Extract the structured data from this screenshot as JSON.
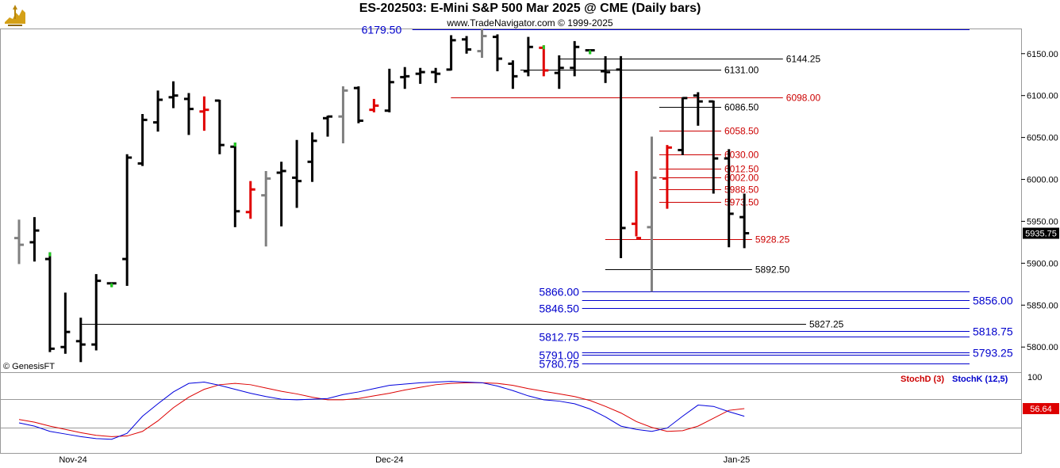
{
  "header": {
    "title": "ES-202503:  E-Mini S&P 500 Mar 2025 @ CME  (Daily bars)",
    "subtitle": "www.TradeNavigator.com © 1999-2025",
    "credit": "© GenesisFT"
  },
  "colors": {
    "up_bar": "#000000",
    "red_bar": "#e00000",
    "gray_bar": "#808080",
    "green_tick": "#22cc22",
    "blue_line": "#0000cc",
    "red_line": "#cc0000",
    "black_line": "#000000",
    "stoch_k": "#0000dd",
    "stoch_d": "#dd0000"
  },
  "chart_data": [
    {
      "type": "ohlc",
      "title": "ES-202503:  E-Mini S&P 500 Mar 2025 @ CME  (Daily bars)",
      "ylim": [
        5770,
        6180
      ],
      "y_ticks": [
        5800,
        5850,
        5900,
        5950,
        6000,
        6050,
        6100,
        6150
      ],
      "y_tick_labels": [
        "5800.00",
        "5850.00",
        "5900.00",
        "5950.00",
        "6000.00",
        "6050.00",
        "6100.00",
        "6150.00"
      ],
      "x_labels": [
        {
          "label": "Nov-24",
          "index": 3.5
        },
        {
          "label": "Dec-24",
          "index": 24
        },
        {
          "label": "Jan-25",
          "index": 46.5
        }
      ],
      "last_price_label": "5935.75",
      "bars": [
        {
          "o": 5930,
          "h": 5952,
          "l": 5899,
          "c": 5922,
          "color": "gray"
        },
        {
          "o": 5925,
          "h": 5955,
          "l": 5902,
          "c": 5939,
          "color": "black"
        },
        {
          "o": 5905,
          "h": 5913,
          "l": 5794,
          "c": 5798,
          "color": "black",
          "mark": "green"
        },
        {
          "o": 5800,
          "h": 5865,
          "l": 5792,
          "c": 5818,
          "color": "black"
        },
        {
          "o": 5807,
          "h": 5835,
          "l": 5782,
          "c": 5803,
          "color": "black"
        },
        {
          "o": 5803,
          "h": 5887,
          "l": 5796,
          "c": 5879,
          "color": "black"
        },
        {
          "o": 5876,
          "h": 5876,
          "l": 5872,
          "c": 5876,
          "color": "black",
          "mark": "green"
        },
        {
          "o": 5905,
          "h": 6030,
          "l": 5873,
          "c": 6026,
          "color": "black"
        },
        {
          "o": 6019,
          "h": 6078,
          "l": 6016,
          "c": 6071,
          "color": "black"
        },
        {
          "o": 6068,
          "h": 6106,
          "l": 6057,
          "c": 6095,
          "color": "black"
        },
        {
          "o": 6098,
          "h": 6117,
          "l": 6085,
          "c": 6100,
          "color": "black"
        },
        {
          "o": 6096,
          "h": 6103,
          "l": 6053,
          "c": 6084,
          "color": "black"
        },
        {
          "o": 6081,
          "h": 6099,
          "l": 6058,
          "c": 6083,
          "color": "red"
        },
        {
          "o": 6094,
          "h": 6095,
          "l": 6030,
          "c": 6041,
          "color": "black"
        },
        {
          "o": 6039,
          "h": 6044,
          "l": 5943,
          "c": 5962,
          "color": "black",
          "mark": "green"
        },
        {
          "o": 5961,
          "h": 5998,
          "l": 5953,
          "c": 5988,
          "color": "red"
        },
        {
          "o": 5981,
          "h": 6010,
          "l": 5920,
          "c": 6001,
          "color": "gray"
        },
        {
          "o": 6008,
          "h": 6021,
          "l": 5944,
          "c": 6010,
          "color": "black"
        },
        {
          "o": 6002,
          "h": 6047,
          "l": 5966,
          "c": 5998,
          "color": "black"
        },
        {
          "o": 6021,
          "h": 6056,
          "l": 5997,
          "c": 6046,
          "color": "black"
        },
        {
          "o": 6073,
          "h": 6076,
          "l": 6051,
          "c": 6075,
          "color": "black"
        },
        {
          "o": 6075,
          "h": 6111,
          "l": 6043,
          "c": 6106,
          "color": "gray"
        },
        {
          "o": 6109,
          "h": 6111,
          "l": 6067,
          "c": 6070,
          "color": "black"
        },
        {
          "o": 6083,
          "h": 6096,
          "l": 6080,
          "c": 6088,
          "color": "red"
        },
        {
          "o": 6082,
          "h": 6132,
          "l": 6080,
          "c": 6116,
          "color": "black"
        },
        {
          "o": 6122,
          "h": 6134,
          "l": 6108,
          "c": 6123,
          "color": "black"
        },
        {
          "o": 6126,
          "h": 6133,
          "l": 6114,
          "c": 6128,
          "color": "black"
        },
        {
          "o": 6128,
          "h": 6133,
          "l": 6115,
          "c": 6126,
          "color": "black"
        },
        {
          "o": 6131,
          "h": 6172,
          "l": 6130,
          "c": 6166,
          "color": "black"
        },
        {
          "o": 6167,
          "h": 6171,
          "l": 6150,
          "c": 6155,
          "color": "black"
        },
        {
          "o": 6153,
          "h": 6179.5,
          "l": 6145,
          "c": 6171,
          "color": "gray"
        },
        {
          "o": 6170,
          "h": 6173,
          "l": 6129,
          "c": 6144,
          "color": "black"
        },
        {
          "o": 6138,
          "h": 6142,
          "l": 6108,
          "c": 6123,
          "color": "black"
        },
        {
          "o": 6129,
          "h": 6170,
          "l": 6123,
          "c": 6158,
          "color": "black"
        },
        {
          "o": 6157,
          "h": 6160,
          "l": 6123,
          "c": 6130,
          "color": "red",
          "mark": "green"
        },
        {
          "o": 6127,
          "h": 6148,
          "l": 6108,
          "c": 6133,
          "color": "black"
        },
        {
          "o": 6133,
          "h": 6165,
          "l": 6123,
          "c": 6158,
          "color": "black"
        },
        {
          "o": 6154,
          "h": 6154,
          "l": 6150,
          "c": 6154,
          "color": "black",
          "mark": "green"
        },
        {
          "o": 6129,
          "h": 6147,
          "l": 6115,
          "c": 6128,
          "color": "black"
        },
        {
          "o": 6131,
          "h": 6147,
          "l": 5906,
          "c": 5942,
          "color": "black"
        },
        {
          "o": 5947,
          "h": 6010,
          "l": 5932,
          "c": 5930,
          "color": "red"
        },
        {
          "o": 5943,
          "h": 6051,
          "l": 5866,
          "c": 6002,
          "color": "gray"
        },
        {
          "o": 6001,
          "h": 6041,
          "l": 5965,
          "c": 6038,
          "color": "red"
        },
        {
          "o": 6035,
          "h": 6098,
          "l": 6029,
          "c": 6097,
          "color": "black"
        },
        {
          "o": 6100,
          "h": 6104,
          "l": 6064,
          "c": 6093,
          "color": "black"
        },
        {
          "o": 6093,
          "h": 6094,
          "l": 5983,
          "c": 6025,
          "color": "black"
        },
        {
          "o": 6025,
          "h": 6036,
          "l": 5919,
          "c": 5959,
          "color": "black"
        },
        {
          "o": 5955,
          "h": 5983,
          "l": 5918,
          "c": 5935.75,
          "color": "black"
        }
      ],
      "levels": [
        {
          "price": 6179.5,
          "label": "6179.50",
          "color": "blue",
          "from": 26,
          "to": "end",
          "label_side": "left",
          "label_index": 25
        },
        {
          "price": 6144.25,
          "label": "6144.25",
          "color": "black",
          "from": 35.5,
          "to": 49.5,
          "label_side": "right"
        },
        {
          "price": 6131.0,
          "label": "6131.00",
          "color": "black",
          "from": 33,
          "to": 45.5,
          "label_side": "right"
        },
        {
          "price": 6098.0,
          "label": "6098.00",
          "color": "red",
          "from": 28.5,
          "to": 49.5,
          "label_side": "right"
        },
        {
          "price": 6086.5,
          "label": "6086.50",
          "color": "black",
          "from": 42,
          "to": 45.5,
          "label_side": "right"
        },
        {
          "price": 6058.5,
          "label": "6058.50",
          "color": "red",
          "from": 42,
          "to": 45.5,
          "label_side": "right"
        },
        {
          "price": 6030.0,
          "label": "6030.00",
          "color": "red",
          "from": 42,
          "to": 45.5,
          "label_side": "right"
        },
        {
          "price": 6012.5,
          "label": "6012.50",
          "color": "red",
          "from": 42,
          "to": 45.5,
          "label_side": "right"
        },
        {
          "price": 6002.0,
          "label": "6002.00",
          "color": "red",
          "from": 42,
          "to": 45.5,
          "label_side": "right"
        },
        {
          "price": 5988.5,
          "label": "5988.50",
          "color": "red",
          "from": 42,
          "to": 45.5,
          "label_side": "right"
        },
        {
          "price": 5973.5,
          "label": "5973.50",
          "color": "red",
          "from": 42,
          "to": 45.5,
          "label_side": "right"
        },
        {
          "price": 5928.25,
          "label": "5928.25",
          "color": "red",
          "from": 38.5,
          "to": 47.5,
          "label_side": "right"
        },
        {
          "price": 5892.5,
          "label": "5892.50",
          "color": "black",
          "from": 38.5,
          "to": 47.5,
          "label_side": "right"
        },
        {
          "price": 5866.0,
          "label": "5866.00",
          "color": "blue",
          "from": 37,
          "to": "end",
          "label_side": "left",
          "label_index": 36.5
        },
        {
          "price": 5856.0,
          "label": "5856.00",
          "color": "blue",
          "from": 37,
          "to": "end",
          "label_side": "right"
        },
        {
          "price": 5846.5,
          "label": "5846.50",
          "color": "blue",
          "from": 37,
          "to": "end",
          "label_side": "left",
          "label_index": 36.5
        },
        {
          "price": 5827.25,
          "label": "5827.25",
          "color": "black",
          "from": 4.5,
          "to": 51,
          "label_side": "right"
        },
        {
          "price": 5818.75,
          "label": "5818.75",
          "color": "blue",
          "from": 37,
          "to": "end",
          "label_side": "right"
        },
        {
          "price": 5812.75,
          "label": "5812.75",
          "color": "blue",
          "from": 37,
          "to": "end",
          "label_side": "left",
          "label_index": 36.5
        },
        {
          "price": 5793.25,
          "label": "5793.25",
          "color": "blue",
          "from": 37,
          "to": "end",
          "label_side": "right"
        },
        {
          "price": 5791.0,
          "label": "5791.00",
          "color": "blue",
          "from": 37,
          "to": "end",
          "label_side": "left",
          "label_index": 36.5
        },
        {
          "price": 5780.75,
          "label": "5780.75",
          "color": "blue",
          "from": 37,
          "to": "end",
          "label_side": "left",
          "label_index": 36.5
        }
      ]
    },
    {
      "type": "line",
      "ylim": [
        0,
        100
      ],
      "y_tick_labels": [
        "100"
      ],
      "series": [
        {
          "name": "StochD (3)",
          "color": "red",
          "values": [
            40,
            36,
            30,
            25,
            20,
            16,
            14,
            15,
            22,
            38,
            58,
            74,
            86,
            93,
            95,
            93,
            88,
            83,
            79,
            74,
            70,
            70,
            72,
            76,
            80,
            85,
            89,
            93,
            95,
            96,
            96,
            95,
            92,
            87,
            83,
            79,
            75,
            69,
            60,
            50,
            37,
            28,
            22,
            23,
            30,
            42,
            54,
            56.64
          ]
        },
        {
          "name": "StochK (12,5)",
          "color": "blue",
          "values": [
            35,
            30,
            22,
            18,
            14,
            11,
            10,
            19,
            45,
            64,
            82,
            95,
            97,
            92,
            86,
            80,
            75,
            71,
            70,
            71,
            72,
            78,
            82,
            87,
            92,
            94,
            96,
            97,
            98,
            97,
            96,
            91,
            84,
            76,
            70,
            68,
            64,
            56,
            44,
            30,
            25,
            22,
            27,
            45,
            62,
            60,
            52,
            45
          ]
        }
      ],
      "last_value_label": "56.64"
    }
  ]
}
